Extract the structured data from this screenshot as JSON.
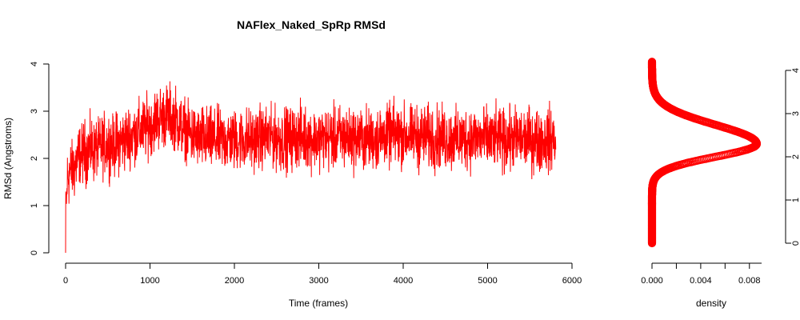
{
  "chart_data": [
    {
      "type": "line",
      "title": "NAFlex_Naked_SpRp RMSd",
      "xlabel": "Time (frames)",
      "ylabel": "RMSd (Angstroms)",
      "xlim": [
        0,
        6000
      ],
      "ylim": [
        0,
        4
      ],
      "x_ticks": [
        "0",
        "1000",
        "2000",
        "3000",
        "4000",
        "5000",
        "6000"
      ],
      "y_ticks": [
        "0",
        "1",
        "2",
        "3",
        "4"
      ],
      "color": "#ff0000",
      "series": [
        {
          "frames": [
            0,
            20,
            50,
            100,
            150,
            200,
            300,
            400,
            500,
            600,
            700,
            800,
            900,
            1000,
            1100,
            1200,
            1300,
            1400,
            1500,
            1600,
            1700,
            1800,
            2000,
            2200,
            2400,
            2600,
            2800,
            3000,
            3200,
            3400,
            3600,
            3800,
            4000,
            4200,
            4400,
            4600,
            4800,
            5000,
            5200,
            5400,
            5600,
            5800
          ],
          "values": [
            0.0,
            1.6,
            1.7,
            1.8,
            2.0,
            2.1,
            2.2,
            2.2,
            2.3,
            2.3,
            2.4,
            2.5,
            2.6,
            2.7,
            2.85,
            2.9,
            2.85,
            2.6,
            2.5,
            2.4,
            2.4,
            2.4,
            2.4,
            2.4,
            2.45,
            2.4,
            2.45,
            2.4,
            2.45,
            2.45,
            2.4,
            2.5,
            2.5,
            2.45,
            2.45,
            2.4,
            2.45,
            2.4,
            2.4,
            2.4,
            2.4,
            2.4
          ],
          "noise_amplitude": 0.45,
          "n_frames": 5810
        }
      ]
    },
    {
      "type": "scatter",
      "xlabel": "density",
      "xlim": [
        0,
        0.009
      ],
      "ylim": [
        0,
        4
      ],
      "x_ticks": [
        "0.000",
        "0.004",
        "0.008"
      ],
      "y_ticks": [
        "0",
        "1",
        "2",
        "3",
        "4"
      ],
      "color": "#ff0000",
      "density_peak": {
        "rmsd": 2.3,
        "density": 0.0086
      },
      "density_sd": 0.4,
      "rmsd_range": [
        0.0,
        4.2
      ]
    }
  ]
}
